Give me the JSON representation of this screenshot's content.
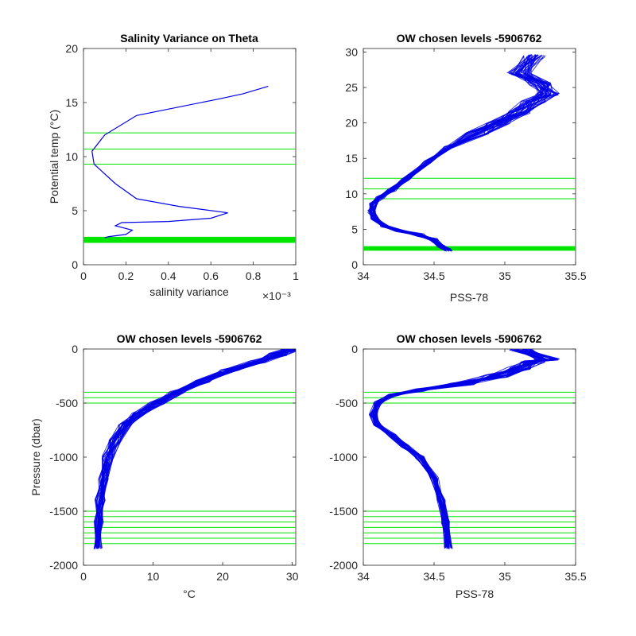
{
  "colors": {
    "profile": "#0000e6",
    "level": "#00e600",
    "axes": "#262626",
    "background": "#ffffff"
  },
  "chart_data": [
    {
      "id": "p1",
      "type": "line",
      "title": "Salinity Variance on Theta",
      "xlabel": "salinity variance",
      "ylabel": "Potential temp (°C)",
      "x_exponent_label": "×10⁻³",
      "xlim": [
        0,
        1
      ],
      "ylim": [
        0,
        20
      ],
      "xticks": [
        0,
        0.2,
        0.4,
        0.6,
        0.8,
        1
      ],
      "xtick_labels": [
        "0",
        "0.2",
        "0.4",
        "0.6",
        "0.8",
        "1"
      ],
      "yticks": [
        0,
        5,
        10,
        15,
        20
      ],
      "ytick_labels": [
        "0",
        "5",
        "10",
        "15",
        "20"
      ],
      "profile": {
        "x": [
          0.87,
          0.75,
          0.63,
          0.25,
          0.1,
          0.04,
          0.05,
          0.15,
          0.25,
          0.45,
          0.68,
          0.6,
          0.4,
          0.18,
          0.15,
          0.23,
          0.2,
          0.12,
          0.1
        ],
        "y": [
          16.5,
          15.8,
          15.3,
          13.8,
          12,
          10.5,
          9.3,
          7.5,
          6.1,
          5.4,
          4.8,
          4.3,
          4,
          3.9,
          3.6,
          3.2,
          2.8,
          2.6,
          2.5
        ]
      },
      "level_lines": [
        12.2,
        10.7,
        9.3
      ],
      "thick_levels": [
        2.1,
        2.2,
        2.3,
        2.4,
        2.5
      ]
    },
    {
      "id": "p2",
      "type": "line",
      "title": "OW chosen levels -5906762",
      "xlabel": "PSS-78",
      "ylabel": "",
      "xlim": [
        34,
        35.5
      ],
      "ylim": [
        0,
        30.5
      ],
      "xticks": [
        34,
        34.5,
        35,
        35.5
      ],
      "xtick_labels": [
        "34",
        "34.5",
        "35",
        "35.5"
      ],
      "yticks": [
        0,
        5,
        10,
        15,
        20,
        25,
        30
      ],
      "ytick_labels": [
        "0",
        "5",
        "10",
        "15",
        "20",
        "25",
        "30"
      ],
      "profile": {
        "x": [
          34.6,
          34.55,
          34.5,
          34.4,
          34.25,
          34.15,
          34.08,
          34.06,
          34.07,
          34.12,
          34.2,
          34.3,
          34.45,
          34.6,
          34.8,
          34.95,
          35.1,
          35.2,
          35.3,
          35.25,
          35.1,
          35.2
        ],
        "y": [
          2,
          2.5,
          3.5,
          4.2,
          4.8,
          5.5,
          6.5,
          7.5,
          8.5,
          9.5,
          10.5,
          12,
          14.5,
          16.5,
          18.5,
          20,
          21.5,
          23,
          24,
          25.5,
          27,
          29.5
        ]
      },
      "level_lines": [
        12.2,
        10.7,
        9.3
      ],
      "thick_levels": [
        2.1,
        2.2,
        2.3,
        2.4,
        2.5
      ]
    },
    {
      "id": "p3",
      "type": "line",
      "title": "OW chosen levels -5906762",
      "xlabel": "°C",
      "ylabel": "Pressure (dbar)",
      "xlim": [
        0,
        30.5
      ],
      "ylim": [
        -2000,
        0
      ],
      "xticks": [
        0,
        10,
        20,
        30
      ],
      "xtick_labels": [
        "0",
        "10",
        "20",
        "30"
      ],
      "yticks": [
        -2000,
        -1500,
        -1000,
        -500,
        0
      ],
      "ytick_labels": [
        "-2000",
        "-1500",
        "-1000",
        "-500",
        "0"
      ],
      "profile": {
        "x": [
          2.1,
          2.2,
          2.4,
          2.8,
          3.5,
          4.5,
          6,
          8,
          10.5,
          13.5,
          17,
          21,
          25,
          28,
          30
        ],
        "y": [
          -1840,
          -1600,
          -1400,
          -1200,
          -1000,
          -850,
          -700,
          -600,
          -500,
          -400,
          -300,
          -200,
          -120,
          -50,
          0
        ]
      },
      "level_lines": [
        -400,
        -450,
        -500,
        -1500,
        -1550,
        -1600,
        -1650,
        -1700,
        -1750,
        -1800
      ]
    },
    {
      "id": "p4",
      "type": "line",
      "title": "OW chosen levels -5906762",
      "xlabel": "PSS-78",
      "ylabel": "",
      "xlim": [
        34,
        35.5
      ],
      "ylim": [
        -2000,
        0
      ],
      "xticks": [
        34,
        34.5,
        35,
        35.5
      ],
      "xtick_labels": [
        "34",
        "34.5",
        "35",
        "35.5"
      ],
      "yticks": [
        -2000,
        -1500,
        -1000,
        -500,
        0
      ],
      "ytick_labels": [
        "-2000",
        "-1500",
        "-1000",
        "-500",
        "0"
      ],
      "profile": {
        "x": [
          34.6,
          34.58,
          34.55,
          34.5,
          34.4,
          34.3,
          34.2,
          34.1,
          34.07,
          34.1,
          34.2,
          34.4,
          34.7,
          34.95,
          35.1,
          35.2,
          35.3,
          35.1
        ],
        "y": [
          -1840,
          -1600,
          -1400,
          -1200,
          -1000,
          -900,
          -800,
          -700,
          -600,
          -500,
          -430,
          -380,
          -320,
          -250,
          -180,
          -120,
          -100,
          0
        ]
      },
      "level_lines": [
        -400,
        -450,
        -500,
        -1500,
        -1550,
        -1600,
        -1650,
        -1700,
        -1750,
        -1800
      ]
    }
  ]
}
